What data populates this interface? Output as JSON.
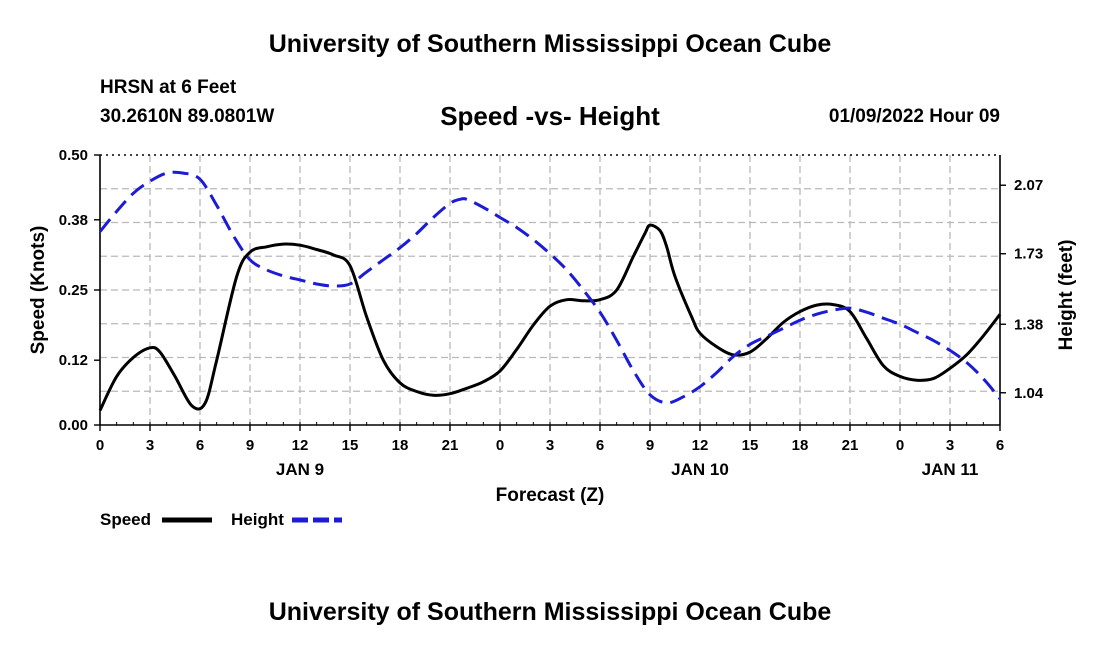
{
  "header": {
    "title": "University of Southern Mississippi Ocean Cube",
    "station": "HRSN at 6 Feet",
    "coordinates": "30.2610N  89.0801W",
    "subtitle": "Speed -vs- Height",
    "timestamp": "01/09/2022 Hour 09"
  },
  "footer": {
    "title": "University of Southern Mississippi Ocean Cube"
  },
  "chart_data": {
    "type": "line",
    "title": "Speed -vs- Height",
    "xlabel": "Forecast (Z)",
    "ylabel": "Speed (Knots)",
    "y2label": "Height (feet)",
    "xlim": [
      0,
      54
    ],
    "ylim": [
      0,
      0.5
    ],
    "y2lim": [
      0.88,
      2.22
    ],
    "x_ticks": [
      0,
      3,
      6,
      9,
      12,
      15,
      18,
      21,
      24,
      27,
      30,
      33,
      36,
      39,
      42,
      45,
      48,
      51,
      54
    ],
    "x_tick_labels": [
      "0",
      "3",
      "6",
      "9",
      "12",
      "15",
      "18",
      "21",
      "0",
      "3",
      "6",
      "9",
      "12",
      "15",
      "18",
      "21",
      "0",
      "3",
      "6"
    ],
    "date_labels": [
      {
        "x": 12,
        "label": "JAN 9"
      },
      {
        "x": 36,
        "label": "JAN 10"
      },
      {
        "x": 51,
        "label": "JAN 11"
      }
    ],
    "y_ticks": [
      0.0,
      0.12,
      0.25,
      0.38,
      0.5
    ],
    "y_tick_labels": [
      "0.00",
      "0.12",
      "0.25",
      "0.38",
      "0.50"
    ],
    "y2_ticks": [
      1.04,
      1.38,
      1.73,
      2.07
    ],
    "y2_tick_labels": [
      "1.04",
      "1.38",
      "1.73",
      "2.07"
    ],
    "grid": true,
    "legend_position": "bottom-left",
    "series": [
      {
        "name": "Speed",
        "axis": "left",
        "color": "#000000",
        "dash": "solid",
        "x": [
          0,
          1,
          2,
          3,
          3.6,
          4.5,
          5.5,
          6.3,
          7,
          8.2,
          9,
          10,
          11,
          12,
          13,
          14,
          15,
          16,
          17,
          18,
          19,
          20,
          21,
          22,
          23,
          24,
          25,
          26,
          27,
          28,
          29,
          30,
          31,
          32,
          32.7,
          33,
          33.6,
          34,
          34.5,
          35.5,
          36,
          37,
          38,
          39,
          40,
          41,
          42,
          43,
          44,
          45,
          46,
          47,
          48,
          49,
          50,
          51,
          52,
          53,
          54
        ],
        "values": [
          0.027,
          0.09,
          0.125,
          0.143,
          0.135,
          0.09,
          0.036,
          0.04,
          0.12,
          0.275,
          0.32,
          0.33,
          0.335,
          0.333,
          0.325,
          0.315,
          0.295,
          0.2,
          0.12,
          0.078,
          0.062,
          0.055,
          0.058,
          0.068,
          0.08,
          0.1,
          0.14,
          0.185,
          0.22,
          0.232,
          0.23,
          0.232,
          0.25,
          0.312,
          0.355,
          0.37,
          0.36,
          0.33,
          0.275,
          0.2,
          0.17,
          0.145,
          0.13,
          0.135,
          0.16,
          0.19,
          0.21,
          0.222,
          0.223,
          0.21,
          0.16,
          0.11,
          0.09,
          0.083,
          0.086,
          0.105,
          0.13,
          0.165,
          0.205
        ]
      },
      {
        "name": "Height",
        "axis": "right",
        "color": "#1c1cd6",
        "dash": "dashed",
        "x": [
          0,
          1,
          2,
          3,
          4,
          5,
          6,
          7,
          8,
          9,
          10,
          11,
          12,
          13,
          14,
          15,
          16,
          17,
          18,
          19,
          20,
          21,
          21.6,
          22,
          23,
          24,
          25,
          26,
          27,
          28,
          29,
          30,
          31,
          32,
          33,
          34,
          35,
          36,
          37,
          38,
          39,
          40,
          41,
          42,
          43,
          44,
          45,
          46,
          47,
          48,
          49,
          50,
          51,
          52,
          53,
          54
        ],
        "values": [
          1.84,
          1.94,
          2.03,
          2.09,
          2.13,
          2.13,
          2.1,
          1.97,
          1.82,
          1.7,
          1.65,
          1.62,
          1.6,
          1.58,
          1.57,
          1.58,
          1.64,
          1.7,
          1.76,
          1.83,
          1.91,
          1.98,
          2.0,
          2.0,
          1.96,
          1.91,
          1.86,
          1.8,
          1.73,
          1.65,
          1.55,
          1.44,
          1.3,
          1.15,
          1.03,
          0.99,
          1.02,
          1.07,
          1.14,
          1.22,
          1.28,
          1.32,
          1.36,
          1.4,
          1.43,
          1.45,
          1.46,
          1.44,
          1.41,
          1.38,
          1.34,
          1.3,
          1.25,
          1.19,
          1.11,
          1.01
        ]
      }
    ]
  },
  "legend": {
    "speed_label": "Speed",
    "height_label": "Height"
  }
}
